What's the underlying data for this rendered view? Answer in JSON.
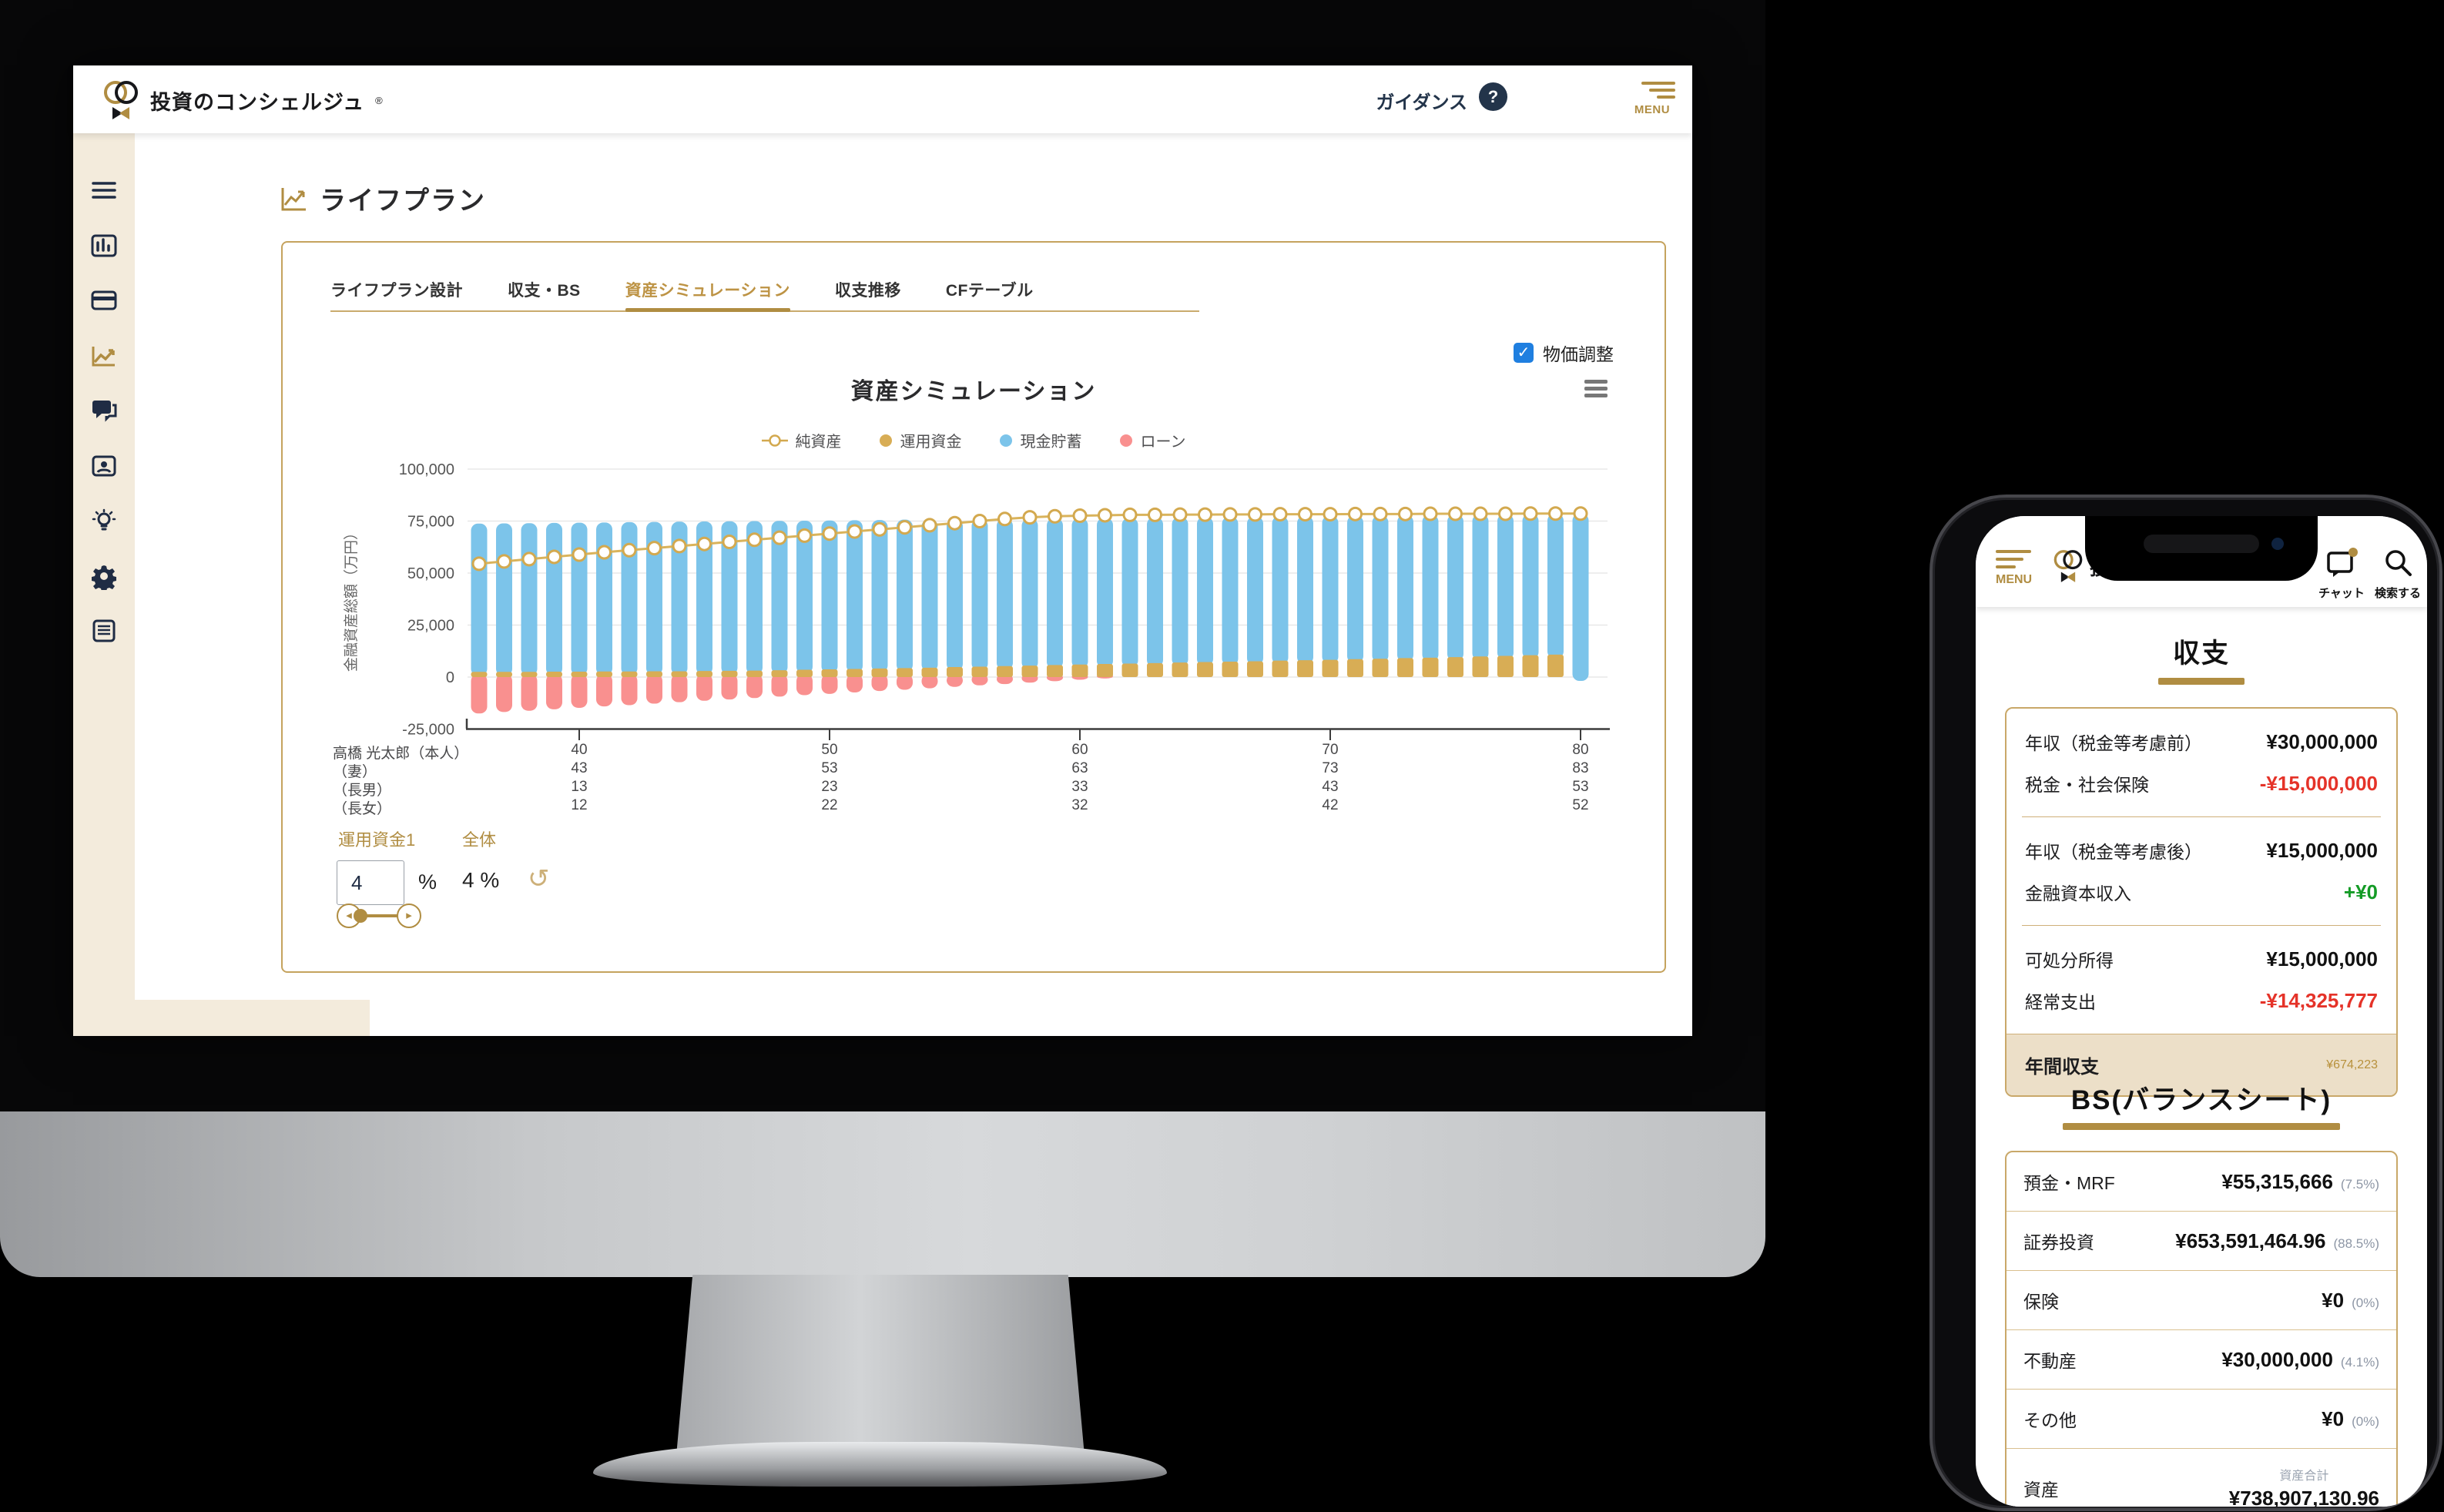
{
  "desktop": {
    "header": {
      "logo_text": "投資のコンシェルジュ",
      "logo_reg": "®",
      "guidance_label": "ガイダンス",
      "help_glyph": "?",
      "menu_label": "MENU"
    },
    "sidebar": {
      "items": [
        {
          "icon": "hamburger-icon",
          "active": false
        },
        {
          "icon": "dashboard-icon",
          "active": false
        },
        {
          "icon": "card-icon",
          "active": false
        },
        {
          "icon": "lifeplan-chart-icon",
          "active": true
        },
        {
          "icon": "chat-icon",
          "active": false
        },
        {
          "icon": "profile-icon",
          "active": false
        },
        {
          "icon": "idea-icon",
          "active": false
        },
        {
          "icon": "settings-icon",
          "active": false
        },
        {
          "icon": "report-icon",
          "active": false
        }
      ]
    },
    "page_title": "ライフプラン",
    "tabs": [
      {
        "label": "ライフプラン設計",
        "active": false
      },
      {
        "label": "収支・BS",
        "active": false
      },
      {
        "label": "資産シミュレーション",
        "active": true
      },
      {
        "label": "収支推移",
        "active": false
      },
      {
        "label": "CFテーブル",
        "active": false
      }
    ],
    "price_adjust_label": "物価調整",
    "controls": {
      "fund_label": "運用資金1",
      "overall_label": "全体",
      "fund_value": "4",
      "percent_sign": "%",
      "overall_value": "4 %",
      "undo_glyph": "↺"
    }
  },
  "chart_data": {
    "type": "bar",
    "title": "資産シミュレーション",
    "ylabel": "金融資産総額（万円）",
    "ylim": [
      -25000,
      100000
    ],
    "yticks": [
      100000,
      75000,
      50000,
      25000,
      0,
      -25000
    ],
    "grid": true,
    "legend_position": "top",
    "x": [
      36,
      37,
      38,
      39,
      40,
      41,
      42,
      43,
      44,
      45,
      46,
      47,
      48,
      49,
      50,
      51,
      52,
      53,
      54,
      55,
      56,
      57,
      58,
      59,
      60,
      61,
      62,
      63,
      64,
      65,
      66,
      67,
      68,
      69,
      70,
      71,
      72,
      73,
      74,
      75,
      76,
      77,
      78,
      79,
      80
    ],
    "xticks": [
      40,
      50,
      60,
      70,
      80
    ],
    "legend": [
      {
        "name": "純資産",
        "color": "#d3a94f",
        "marker": "line-circle"
      },
      {
        "name": "運用資金",
        "color": "#d8ad55",
        "marker": "circle"
      },
      {
        "name": "現金貯蓄",
        "color": "#7cc4ea",
        "marker": "circle"
      },
      {
        "name": "ローン",
        "color": "#f9908f",
        "marker": "circle"
      }
    ],
    "series": [
      {
        "name": "純資産",
        "type": "line",
        "values": [
          54500,
          55600,
          56700,
          57800,
          58900,
          60000,
          61000,
          62000,
          63000,
          64000,
          65000,
          66000,
          67000,
          68000,
          69000,
          70000,
          71000,
          72000,
          73000,
          74000,
          75000,
          76000,
          76800,
          77300,
          77600,
          77800,
          78000,
          78000,
          78100,
          78100,
          78200,
          78200,
          78300,
          78300,
          78300,
          78400,
          78400,
          78400,
          78500,
          78500,
          78500,
          78500,
          78600,
          78600,
          78600
        ]
      },
      {
        "name": "運用資金",
        "type": "bar",
        "values": [
          2500,
          2500,
          2500,
          2600,
          2600,
          2700,
          2700,
          2800,
          2800,
          2900,
          3000,
          3100,
          3300,
          3500,
          3700,
          3900,
          4100,
          4300,
          4500,
          4800,
          5000,
          5300,
          5500,
          5800,
          6000,
          6300,
          6500,
          6700,
          7000,
          7200,
          7400,
          7600,
          7900,
          8100,
          8300,
          8600,
          8800,
          9100,
          9300,
          9600,
          9900,
          10200,
          10500,
          10800,
          0
        ]
      },
      {
        "name": "現金貯蓄",
        "type": "bar",
        "values": [
          71300,
          71400,
          71500,
          71500,
          71600,
          71600,
          71800,
          71800,
          71900,
          71900,
          71900,
          71900,
          71800,
          71700,
          71600,
          71500,
          71400,
          71400,
          71300,
          71100,
          71000,
          70800,
          70700,
          70500,
          70400,
          70200,
          70100,
          70100,
          69900,
          69800,
          69700,
          69600,
          69400,
          69300,
          69200,
          69000,
          68900,
          68800,
          68700,
          68500,
          68300,
          68100,
          67900,
          67700,
          78600
        ]
      },
      {
        "name": "ローン",
        "type": "bar",
        "values": [
          -17500,
          -16800,
          -16200,
          -15500,
          -14800,
          -14100,
          -13500,
          -12800,
          -12100,
          -11400,
          -10800,
          -10100,
          -9400,
          -8700,
          -8100,
          -7400,
          -6700,
          -6100,
          -5400,
          -4700,
          -4000,
          -3400,
          -2700,
          -2000,
          -1300,
          -700,
          0,
          0,
          0,
          0,
          0,
          0,
          0,
          0,
          0,
          0,
          0,
          0,
          0,
          0,
          0,
          0,
          0,
          0,
          0
        ]
      }
    ],
    "family_rows": [
      {
        "label": "高橋 光太郎（本人）",
        "ages": [
          40,
          50,
          60,
          70,
          80
        ]
      },
      {
        "label": "（妻）",
        "ages": [
          43,
          53,
          63,
          73,
          83
        ]
      },
      {
        "label": "（長男）",
        "ages": [
          13,
          23,
          33,
          43,
          53
        ]
      },
      {
        "label": "（長女）",
        "ages": [
          12,
          22,
          32,
          42,
          52
        ]
      }
    ]
  },
  "phone": {
    "header": {
      "menu_label": "MENU",
      "logo_text": "投資のコンシェルジュ",
      "chat_label": "チャット",
      "search_label": "検索する"
    },
    "income_section": {
      "title": "収支",
      "groups": [
        {
          "rows": [
            {
              "label": "年収（税金等考慮前）",
              "value": "¥30,000,000",
              "tone": "default"
            },
            {
              "label": "税金・社会保険",
              "value": "-¥15,000,000",
              "tone": "negative"
            }
          ]
        },
        {
          "rows": [
            {
              "label": "年収（税金等考慮後）",
              "value": "¥15,000,000",
              "tone": "default"
            },
            {
              "label": "金融資本収入",
              "value": "+¥0",
              "tone": "positive"
            }
          ]
        },
        {
          "rows": [
            {
              "label": "可処分所得",
              "value": "¥15,000,000",
              "tone": "default"
            },
            {
              "label": "経常支出",
              "value": "-¥14,325,777",
              "tone": "negative"
            }
          ]
        }
      ],
      "total_row": {
        "label": "年間収支",
        "value": "¥674,223",
        "tone": "gold"
      }
    },
    "bs_section": {
      "title": "BS(バランスシート)",
      "rows": [
        {
          "label": "預金・MRF",
          "value": "¥55,315,666",
          "pct": "(7.5%)"
        },
        {
          "label": "証券投資",
          "value": "¥653,591,464.96",
          "pct": "(88.5%)"
        },
        {
          "label": "保険",
          "value": "¥0",
          "pct": "(0%)"
        },
        {
          "label": "不動産",
          "value": "¥30,000,000",
          "pct": "(4.1%)"
        },
        {
          "label": "その他",
          "value": "¥0",
          "pct": "(0%)"
        },
        {
          "label": "資産",
          "value": "¥738,907,130.96",
          "sublabel": "資産合計"
        }
      ]
    }
  }
}
